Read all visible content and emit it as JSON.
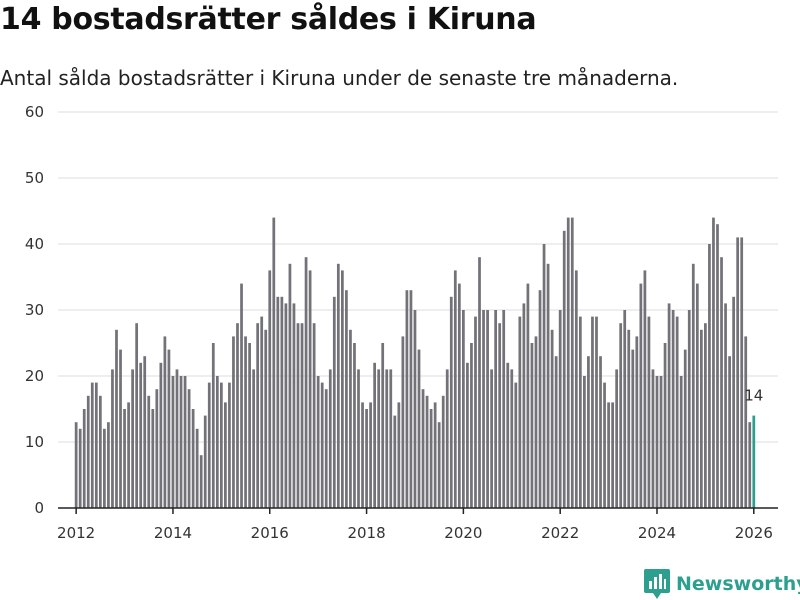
{
  "title": "14 bostadsrätter såldes i Kiruna",
  "subtitle": "Antal sålda bostadsrätter i Kiruna under de senaste tre månaderna.",
  "brand": {
    "name": "Newsworthy",
    "color": "#2c9f8e"
  },
  "colors": {
    "bar": "#737278",
    "highlight": "#2c9f8e",
    "grid": "#dddddd",
    "axis": "#222222"
  },
  "chart_data": {
    "type": "bar",
    "title": "14 bostadsrätter såldes i Kiruna",
    "subtitle": "Antal sålda bostadsrätter i Kiruna under de senaste tre månaderna.",
    "xlabel": "",
    "ylabel": "",
    "ylim": [
      0,
      60
    ],
    "yticks": [
      0,
      10,
      20,
      30,
      40,
      50,
      60
    ],
    "xlim": [
      2011.625,
      2026.5
    ],
    "xticks": [
      2012,
      2014,
      2016,
      2018,
      2020,
      2022,
      2024,
      2026
    ],
    "grid": true,
    "x_start": "2012-01",
    "frequency": "monthly",
    "values": [
      13,
      12,
      15,
      17,
      19,
      19,
      17,
      12,
      13,
      21,
      27,
      24,
      15,
      16,
      21,
      28,
      22,
      23,
      17,
      15,
      18,
      22,
      26,
      24,
      20,
      21,
      20,
      20,
      18,
      15,
      12,
      8,
      14,
      19,
      25,
      20,
      19,
      16,
      19,
      26,
      28,
      34,
      26,
      25,
      21,
      28,
      29,
      27,
      36,
      44,
      32,
      32,
      31,
      37,
      31,
      28,
      28,
      38,
      36,
      28,
      20,
      19,
      18,
      21,
      32,
      37,
      36,
      33,
      27,
      25,
      21,
      16,
      15,
      16,
      22,
      21,
      25,
      21,
      21,
      14,
      16,
      26,
      33,
      33,
      30,
      24,
      18,
      17,
      15,
      16,
      13,
      17,
      21,
      32,
      36,
      34,
      30,
      22,
      25,
      29,
      38,
      30,
      30,
      21,
      30,
      28,
      30,
      22,
      21,
      19,
      29,
      31,
      34,
      25,
      26,
      33,
      40,
      37,
      27,
      23,
      30,
      42,
      44,
      44,
      36,
      29,
      20,
      23,
      29,
      29,
      23,
      19,
      16,
      16,
      21,
      28,
      30,
      27,
      24,
      26,
      34,
      36,
      29,
      21,
      20,
      20,
      25,
      31,
      30,
      29,
      20,
      24,
      30,
      37,
      34,
      27,
      28,
      40,
      44,
      43,
      38,
      31,
      23,
      32,
      41,
      41,
      26,
      13,
      14
    ],
    "highlight": {
      "label": "14",
      "value": 14
    }
  }
}
